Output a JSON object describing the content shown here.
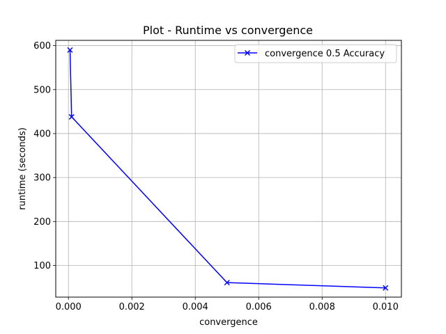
{
  "chart_data": {
    "type": "line",
    "title": "Plot - Runtime vs convergence",
    "xlabel": "convergence",
    "ylabel": "runtime (seconds)",
    "xlim": [
      -0.0004,
      0.0105
    ],
    "ylim": [
      28,
      612
    ],
    "xticks": [
      0.0,
      0.002,
      0.004,
      0.006,
      0.008,
      0.01
    ],
    "xtick_labels": [
      "0.000",
      "0.002",
      "0.004",
      "0.006",
      "0.008",
      "0.010"
    ],
    "yticks": [
      100,
      200,
      300,
      400,
      500,
      600
    ],
    "ytick_labels": [
      "100",
      "200",
      "300",
      "400",
      "500",
      "600"
    ],
    "grid": true,
    "legend_position": "top-right",
    "series": [
      {
        "name": "convergence 0.5 Accuracy",
        "color": "#0000ff",
        "marker": "x",
        "x": [
          5e-05,
          0.0001,
          0.005,
          0.01
        ],
        "y": [
          590,
          438,
          61,
          49
        ]
      }
    ]
  }
}
